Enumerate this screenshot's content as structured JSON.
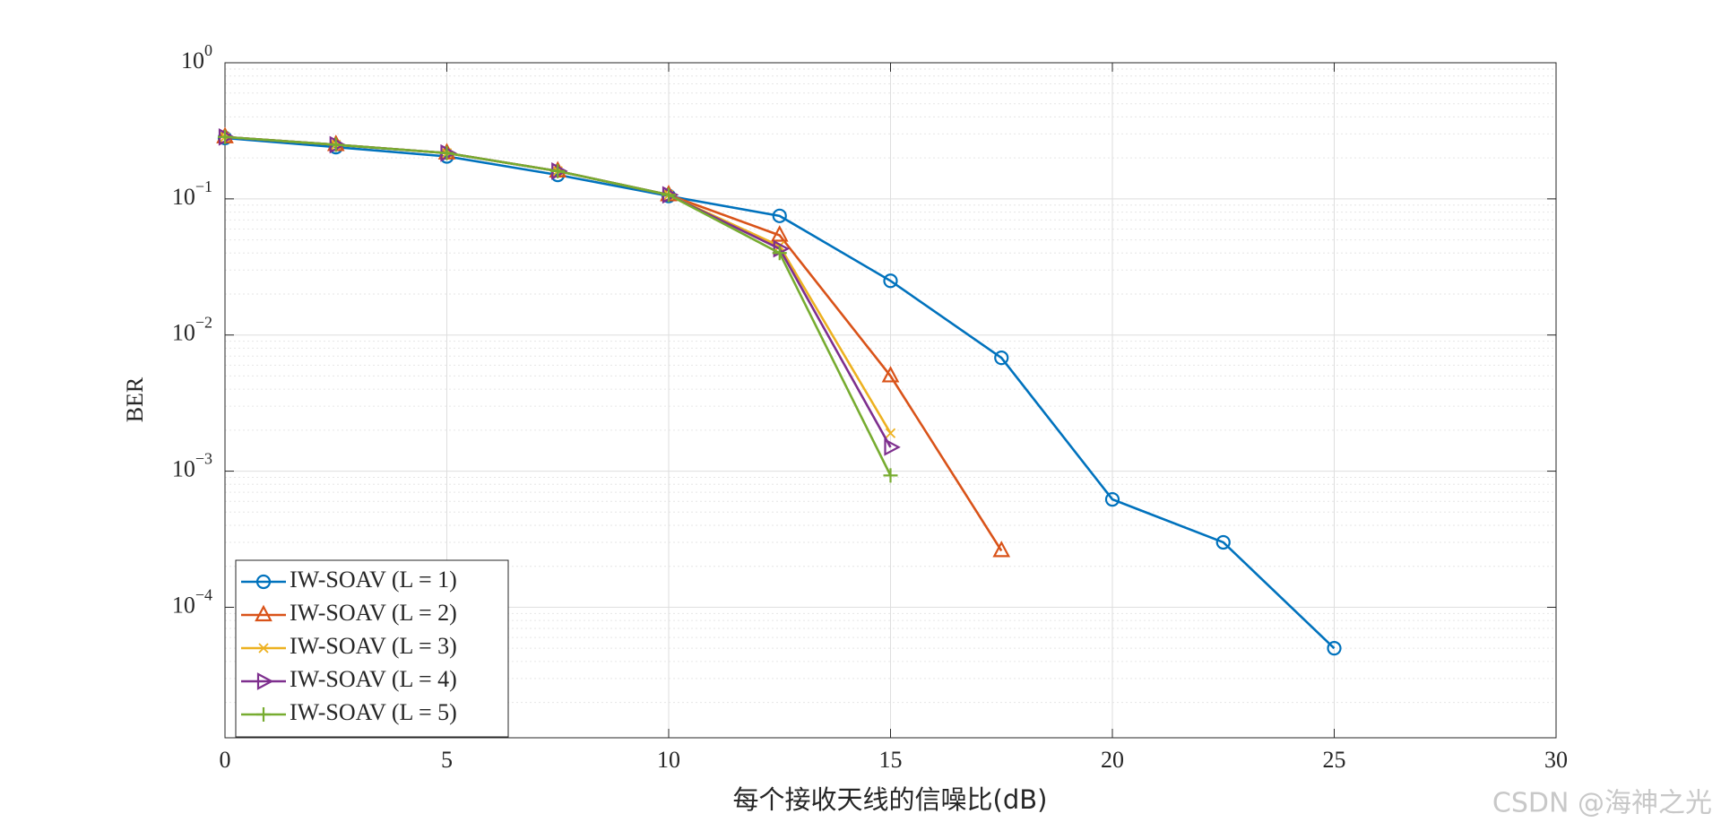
{
  "chart_data": {
    "type": "line",
    "x_label": "每个接收天线的信噪比(dB)",
    "y_label": "BER",
    "watermark": "CSDN @海神之光",
    "log_y": true,
    "grid": true,
    "minor_grid": true,
    "legend_position": "lower-left",
    "xlim": [
      0,
      30
    ],
    "xticks": [
      0,
      5,
      10,
      15,
      20,
      25,
      30
    ],
    "ylim": [
      1.1e-05,
      1
    ],
    "yticks": [
      {
        "value": 0.0001,
        "label": "10",
        "exponent": "−4"
      },
      {
        "value": 0.001,
        "label": "10",
        "exponent": "−3"
      },
      {
        "value": 0.01,
        "label": "10",
        "exponent": "−2"
      },
      {
        "value": 0.1,
        "label": "10",
        "exponent": "−1"
      },
      {
        "value": 1,
        "label": "10",
        "exponent": "0"
      }
    ],
    "series": [
      {
        "name": "IW-SOAV (L = 1)",
        "color": "#0072BD",
        "marker": "circle",
        "x": [
          0,
          2.5,
          5,
          7.5,
          10,
          12.5,
          15,
          17.5,
          20,
          22.5,
          25
        ],
        "values": [
          0.28,
          0.24,
          0.205,
          0.15,
          0.105,
          0.075,
          0.025,
          0.0068,
          0.00062,
          0.0003,
          5e-05
        ]
      },
      {
        "name": "IW-SOAV (L = 2)",
        "color": "#D95319",
        "marker": "triangle-up",
        "x": [
          0,
          2.5,
          5,
          7.5,
          10,
          12.5,
          15,
          17.5
        ],
        "values": [
          0.285,
          0.25,
          0.217,
          0.16,
          0.107,
          0.054,
          0.005,
          0.00026
        ]
      },
      {
        "name": "IW-SOAV (L = 3)",
        "color": "#EDB120",
        "marker": "x",
        "x": [
          0,
          2.5,
          5,
          7.5,
          10,
          12.5,
          15
        ],
        "values": [
          0.285,
          0.25,
          0.217,
          0.16,
          0.107,
          0.045,
          0.0019
        ]
      },
      {
        "name": "IW-SOAV (L = 4)",
        "color": "#7E2F8E",
        "marker": "triangle-right",
        "x": [
          0,
          2.5,
          5,
          7.5,
          10,
          12.5,
          15
        ],
        "values": [
          0.285,
          0.25,
          0.217,
          0.16,
          0.107,
          0.043,
          0.0015
        ]
      },
      {
        "name": "IW-SOAV (L = 5)",
        "color": "#77AC30",
        "marker": "plus",
        "x": [
          0,
          2.5,
          5,
          7.5,
          10,
          12.5,
          15
        ],
        "values": [
          0.285,
          0.25,
          0.217,
          0.16,
          0.107,
          0.04,
          0.00093
        ]
      }
    ]
  }
}
